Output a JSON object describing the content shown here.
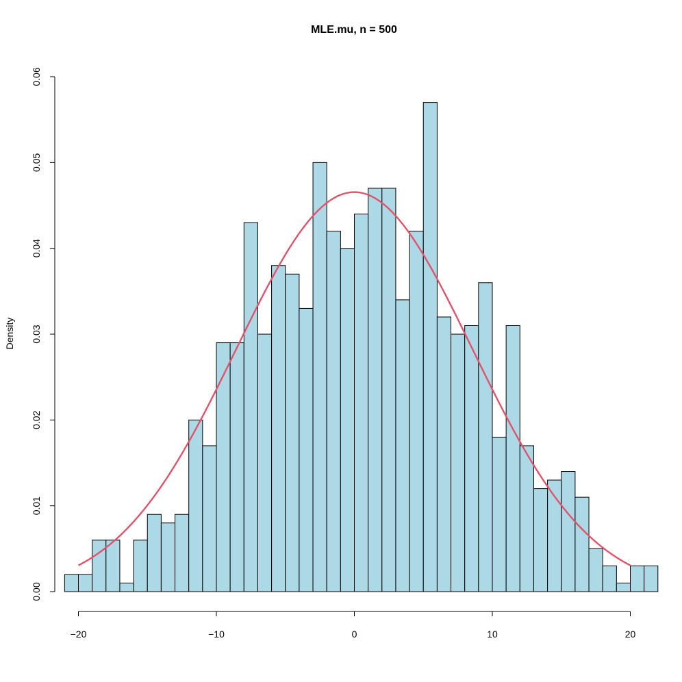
{
  "chart_data": {
    "type": "bar",
    "subtype": "histogram",
    "title": "MLE.mu, n = 500",
    "xlabel": "",
    "ylabel": "Density",
    "xlim": [
      -20,
      20
    ],
    "ylim": [
      0,
      0.06
    ],
    "bin_width": 1,
    "x_ticks": [
      -20,
      -10,
      0,
      10,
      20
    ],
    "x_tick_labels": [
      "−20",
      "−10",
      "0",
      "10",
      "20"
    ],
    "y_ticks": [
      0,
      0.01,
      0.02,
      0.03,
      0.04,
      0.05,
      0.06
    ],
    "y_tick_labels": [
      "0.00",
      "0.01",
      "0.02",
      "0.03",
      "0.04",
      "0.05",
      "0.06"
    ],
    "bins": [
      {
        "start": -21,
        "end": -20,
        "density": 0.002
      },
      {
        "start": -20,
        "end": -19,
        "density": 0.002
      },
      {
        "start": -19,
        "end": -18,
        "density": 0.006
      },
      {
        "start": -18,
        "end": -17,
        "density": 0.006
      },
      {
        "start": -17,
        "end": -16,
        "density": 0.001
      },
      {
        "start": -16,
        "end": -15,
        "density": 0.006
      },
      {
        "start": -15,
        "end": -14,
        "density": 0.009
      },
      {
        "start": -14,
        "end": -13,
        "density": 0.008
      },
      {
        "start": -13,
        "end": -12,
        "density": 0.009
      },
      {
        "start": -12,
        "end": -11,
        "density": 0.02
      },
      {
        "start": -11,
        "end": -10,
        "density": 0.017
      },
      {
        "start": -10,
        "end": -9,
        "density": 0.029
      },
      {
        "start": -9,
        "end": -8,
        "density": 0.029
      },
      {
        "start": -8,
        "end": -7,
        "density": 0.043
      },
      {
        "start": -7,
        "end": -6,
        "density": 0.03
      },
      {
        "start": -6,
        "end": -5,
        "density": 0.038
      },
      {
        "start": -5,
        "end": -4,
        "density": 0.037
      },
      {
        "start": -4,
        "end": -3,
        "density": 0.033
      },
      {
        "start": -3,
        "end": -2,
        "density": 0.05
      },
      {
        "start": -2,
        "end": -1,
        "density": 0.042
      },
      {
        "start": -1,
        "end": 0,
        "density": 0.04
      },
      {
        "start": 0,
        "end": 1,
        "density": 0.044
      },
      {
        "start": 1,
        "end": 2,
        "density": 0.047
      },
      {
        "start": 2,
        "end": 3,
        "density": 0.047
      },
      {
        "start": 3,
        "end": 4,
        "density": 0.034
      },
      {
        "start": 4,
        "end": 5,
        "density": 0.042
      },
      {
        "start": 5,
        "end": 6,
        "density": 0.057
      },
      {
        "start": 6,
        "end": 7,
        "density": 0.032
      },
      {
        "start": 7,
        "end": 8,
        "density": 0.03
      },
      {
        "start": 8,
        "end": 9,
        "density": 0.031
      },
      {
        "start": 9,
        "end": 10,
        "density": 0.036
      },
      {
        "start": 10,
        "end": 11,
        "density": 0.018
      },
      {
        "start": 11,
        "end": 12,
        "density": 0.031
      },
      {
        "start": 12,
        "end": 13,
        "density": 0.017
      },
      {
        "start": 13,
        "end": 14,
        "density": 0.012
      },
      {
        "start": 14,
        "end": 15,
        "density": 0.013
      },
      {
        "start": 15,
        "end": 16,
        "density": 0.014
      },
      {
        "start": 16,
        "end": 17,
        "density": 0.011
      },
      {
        "start": 17,
        "end": 18,
        "density": 0.005
      },
      {
        "start": 18,
        "end": 19,
        "density": 0.003
      },
      {
        "start": 19,
        "end": 20,
        "density": 0.001
      },
      {
        "start": 20,
        "end": 21,
        "density": 0.003
      },
      {
        "start": 21,
        "end": 22,
        "density": 0.003
      }
    ],
    "overlay": {
      "type": "normal_density_curve",
      "mean": 0,
      "sd": 8.57,
      "x_range": [
        -20,
        20
      ],
      "color": "#DF536B"
    },
    "bar_fill": "#ADD8E6",
    "bar_stroke": "#000000",
    "grid": false,
    "legend": "none"
  }
}
